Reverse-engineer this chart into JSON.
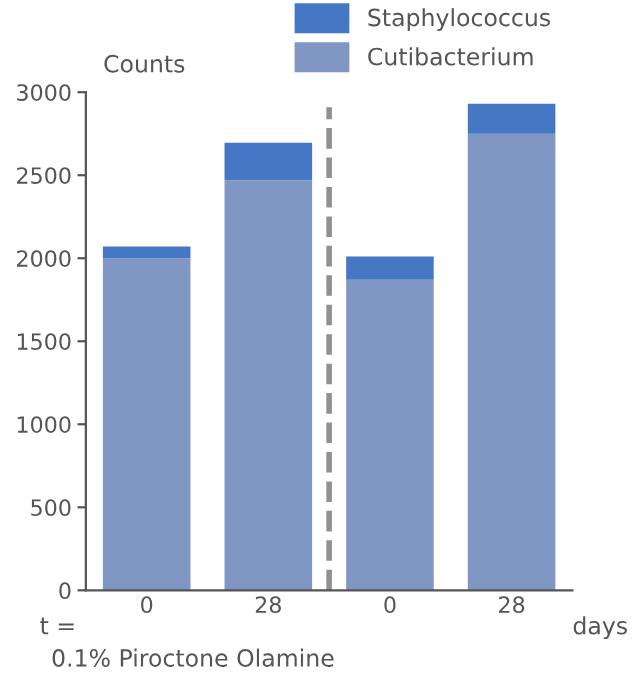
{
  "chart_data": {
    "type": "bar",
    "stacked": true,
    "ylabel": "Counts",
    "categories": [
      "0",
      "28",
      "0",
      "28"
    ],
    "series": [
      {
        "name": "Cutibacterium",
        "color": "#7f97c2",
        "values": [
          2000,
          2470,
          1870,
          2750
        ]
      },
      {
        "name": "Staphylococcus",
        "color": "#4677c4",
        "values": [
          70,
          225,
          140,
          180
        ]
      }
    ],
    "ylim": [
      0,
      3000
    ],
    "yticks": [
      0,
      500,
      1000,
      1500,
      2000,
      2500,
      3000
    ],
    "grid": false,
    "legend": "top right",
    "annotations": [
      "t =",
      "days",
      "0.1% Piroctone Olamine"
    ]
  }
}
